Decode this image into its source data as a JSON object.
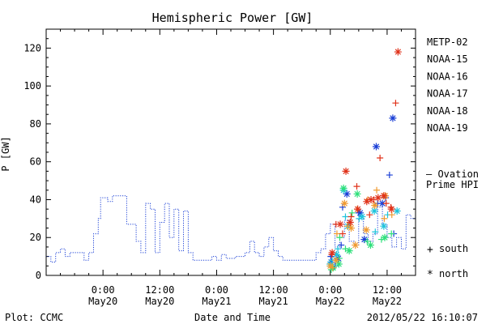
{
  "chart_data": {
    "type": "scatter",
    "title": "Hemispheric Power [GW]",
    "ylabel": "P [GW]",
    "xlabel": "Date and Time",
    "ylim": [
      0,
      130
    ],
    "y_ticks": [
      0,
      20,
      40,
      60,
      80,
      100,
      120
    ],
    "x_unit": "hours since 2012-05-19 12:00",
    "xlim": [
      0,
      78
    ],
    "x_ticks": [
      {
        "x": 12,
        "line1": "0:00",
        "line2": "May20"
      },
      {
        "x": 24,
        "line1": "12:00",
        "line2": "May20"
      },
      {
        "x": 36,
        "line1": "0:00",
        "line2": "May21"
      },
      {
        "x": 48,
        "line1": "12:00",
        "line2": "May21"
      },
      {
        "x": 60,
        "line1": "0:00",
        "line2": "May22"
      },
      {
        "x": 72,
        "line1": "12:00",
        "line2": "May22"
      }
    ],
    "footer": {
      "left": "Plot: CCMC",
      "right": "2012/05/22 16:10:07"
    },
    "ovation_label": [
      "— Ovation",
      "Prime HPI"
    ],
    "marker_legend": [
      {
        "symbol": "+",
        "text": "south"
      },
      {
        "symbol": "*",
        "text": "north"
      }
    ],
    "series": [
      {
        "name": "METP-02",
        "color": "#000000",
        "south": [],
        "north": []
      },
      {
        "name": "NOAA-15",
        "color": "#1a3fd6",
        "south": [
          [
            60.1,
            10
          ],
          [
            61.0,
            5
          ],
          [
            62.6,
            36
          ],
          [
            66.0,
            33
          ],
          [
            67.2,
            19
          ],
          [
            70.0,
            38
          ],
          [
            71.7,
            41
          ],
          [
            72.5,
            53
          ],
          [
            73.4,
            22
          ],
          [
            62.3,
            16
          ]
        ],
        "north": [
          [
            60.2,
            7
          ],
          [
            61.7,
            9
          ],
          [
            63.5,
            43
          ],
          [
            66.3,
            33
          ],
          [
            67.2,
            19
          ],
          [
            69.7,
            68
          ],
          [
            71.0,
            38
          ],
          [
            73.2,
            83
          ]
        ]
      },
      {
        "name": "NOAA-16",
        "color": "#1fc4dc",
        "south": [
          [
            60.4,
            8
          ],
          [
            61.6,
            14
          ],
          [
            63.2,
            31
          ],
          [
            66.1,
            30
          ],
          [
            69.5,
            23
          ],
          [
            72.1,
            32
          ]
        ],
        "north": [
          [
            60.0,
            6
          ],
          [
            61.3,
            11
          ],
          [
            62.8,
            45
          ],
          [
            63.7,
            26
          ],
          [
            66.7,
            31
          ],
          [
            69.3,
            34
          ],
          [
            71.3,
            26
          ],
          [
            74.1,
            34
          ]
        ]
      },
      {
        "name": "NOAA-17",
        "color": "#2de07a",
        "south": [
          [
            60.2,
            3
          ],
          [
            61.9,
            9
          ],
          [
            63.2,
            14
          ],
          [
            64.6,
            33
          ],
          [
            67.8,
            18
          ],
          [
            70.8,
            19
          ],
          [
            72.9,
            22
          ],
          [
            62.0,
            20
          ]
        ],
        "north": [
          [
            60.6,
            4
          ],
          [
            61.8,
            6
          ],
          [
            62.8,
            46
          ],
          [
            64.0,
            13
          ],
          [
            65.7,
            43
          ],
          [
            68.5,
            16
          ],
          [
            71.5,
            20
          ]
        ]
      },
      {
        "name": "NOAA-18",
        "color": "#f09a30",
        "south": [
          [
            60.5,
            4
          ],
          [
            61.4,
            22
          ],
          [
            63.6,
            26
          ],
          [
            65.7,
            35
          ],
          [
            67.9,
            40
          ],
          [
            69.8,
            45
          ],
          [
            71.4,
            30
          ],
          [
            73.0,
            32
          ]
        ],
        "north": [
          [
            60.0,
            5
          ],
          [
            61.2,
            8
          ],
          [
            63.0,
            38
          ],
          [
            64.4,
            25
          ],
          [
            65.3,
            16
          ],
          [
            67.6,
            24
          ],
          [
            69.4,
            37
          ],
          [
            71.6,
            42
          ]
        ]
      },
      {
        "name": "NOAA-19",
        "color": "#e0321a",
        "south": [
          [
            60.3,
            11
          ],
          [
            61.2,
            27
          ],
          [
            62.6,
            22
          ],
          [
            64.4,
            31
          ],
          [
            65.6,
            47
          ],
          [
            68.3,
            32
          ],
          [
            69.2,
            40
          ],
          [
            70.5,
            62
          ],
          [
            71.8,
            38
          ],
          [
            72.8,
            36
          ],
          [
            73.8,
            91
          ]
        ],
        "north": [
          [
            60.4,
            12
          ],
          [
            62.1,
            27
          ],
          [
            63.3,
            55
          ],
          [
            64.2,
            28
          ],
          [
            65.8,
            35
          ],
          [
            67.7,
            39
          ],
          [
            68.6,
            40
          ],
          [
            70.1,
            41
          ],
          [
            71.3,
            42
          ],
          [
            72.9,
            35
          ],
          [
            74.3,
            118
          ]
        ]
      }
    ],
    "ovation_hpi": {
      "color": "#1a3fd6",
      "points": [
        [
          0,
          10
        ],
        [
          1,
          10
        ],
        [
          1,
          7
        ],
        [
          2,
          7
        ],
        [
          2,
          12
        ],
        [
          3,
          12
        ],
        [
          3,
          14
        ],
        [
          4,
          14
        ],
        [
          4,
          10
        ],
        [
          5,
          10
        ],
        [
          5,
          12
        ],
        [
          8,
          12
        ],
        [
          8,
          8
        ],
        [
          9,
          8
        ],
        [
          9,
          12
        ],
        [
          10,
          12
        ],
        [
          10,
          22
        ],
        [
          11,
          22
        ],
        [
          11,
          30
        ],
        [
          11.5,
          30
        ],
        [
          11.5,
          41
        ],
        [
          13,
          41
        ],
        [
          13,
          39
        ],
        [
          14,
          39
        ],
        [
          14,
          42
        ],
        [
          17,
          42
        ],
        [
          17,
          27
        ],
        [
          19,
          27
        ],
        [
          19,
          18
        ],
        [
          20,
          18
        ],
        [
          20,
          12
        ],
        [
          21,
          12
        ],
        [
          21,
          38
        ],
        [
          22,
          38
        ],
        [
          22,
          35
        ],
        [
          23,
          35
        ],
        [
          23,
          12
        ],
        [
          24,
          12
        ],
        [
          24,
          28
        ],
        [
          25,
          28
        ],
        [
          25,
          38
        ],
        [
          26,
          38
        ],
        [
          26,
          20
        ],
        [
          27,
          20
        ],
        [
          27,
          35
        ],
        [
          28,
          35
        ],
        [
          28,
          13
        ],
        [
          29,
          13
        ],
        [
          29,
          34
        ],
        [
          30,
          34
        ],
        [
          30,
          12
        ],
        [
          31,
          12
        ],
        [
          31,
          8
        ],
        [
          35,
          8
        ],
        [
          35,
          10
        ],
        [
          36,
          10
        ],
        [
          36,
          8
        ],
        [
          37,
          8
        ],
        [
          37,
          11
        ],
        [
          38,
          11
        ],
        [
          38,
          9
        ],
        [
          40,
          9
        ],
        [
          40,
          10
        ],
        [
          42,
          10
        ],
        [
          42,
          12
        ],
        [
          43,
          12
        ],
        [
          43,
          18
        ],
        [
          44,
          18
        ],
        [
          44,
          12
        ],
        [
          45,
          12
        ],
        [
          45,
          10
        ],
        [
          46,
          10
        ],
        [
          46,
          15
        ],
        [
          47,
          15
        ],
        [
          47,
          20
        ],
        [
          48,
          20
        ],
        [
          48,
          13
        ],
        [
          49,
          13
        ],
        [
          49,
          10
        ],
        [
          50,
          10
        ],
        [
          50,
          8
        ],
        [
          57,
          8
        ],
        [
          57,
          12
        ],
        [
          58,
          12
        ],
        [
          58,
          14
        ],
        [
          59,
          14
        ],
        [
          59,
          22
        ],
        [
          60,
          22
        ],
        [
          60,
          27
        ],
        [
          61,
          27
        ],
        [
          61,
          15
        ],
        [
          62,
          15
        ],
        [
          62,
          20
        ],
        [
          63,
          20
        ],
        [
          63,
          29
        ],
        [
          64,
          29
        ],
        [
          64,
          18
        ],
        [
          65,
          18
        ],
        [
          65,
          16
        ],
        [
          66,
          16
        ],
        [
          66,
          30
        ],
        [
          67,
          30
        ],
        [
          67,
          22
        ],
        [
          68,
          22
        ],
        [
          68,
          18
        ],
        [
          69,
          18
        ],
        [
          69,
          22
        ],
        [
          70,
          22
        ],
        [
          70,
          36
        ],
        [
          71,
          36
        ],
        [
          71,
          27
        ],
        [
          72,
          27
        ],
        [
          72,
          20
        ],
        [
          73,
          20
        ],
        [
          73,
          15
        ],
        [
          74,
          15
        ],
        [
          74,
          20
        ],
        [
          75,
          20
        ],
        [
          75,
          14
        ],
        [
          76,
          14
        ],
        [
          76,
          32
        ],
        [
          77,
          32
        ],
        [
          77,
          30
        ],
        [
          78,
          30
        ]
      ]
    }
  }
}
